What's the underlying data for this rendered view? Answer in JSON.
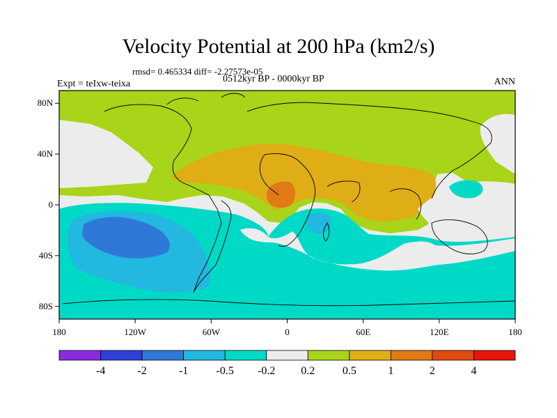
{
  "title": "Velocity Potential at 200 hPa (km2/s)",
  "stats": "rmsd= 0.465334 diff= -2.27573e-05",
  "experiment": "Expt = teIxw-teixa",
  "period": "0512kyr BP - 0000kyr BP",
  "season": "ANN",
  "map": {
    "projection": "cylindrical equidistant",
    "lon_range": [
      -180,
      180
    ],
    "lat_range": [
      -90,
      90
    ],
    "x_ticks": [
      "180",
      "120W",
      "60W",
      "0",
      "60E",
      "120E",
      "180"
    ],
    "y_ticks": [
      "80N",
      "40N",
      "0",
      "40S",
      "80S"
    ],
    "fill_colors": {
      "lt_-4": "#8a2be2",
      "-4_-2": "#2e3fd9",
      "-2_-1": "#2f78d8",
      "-1_-0.5": "#22b8e0",
      "-0.5_-0.2": "#00d9c6",
      "-0.2_0.2": "#ececec",
      "0.2_0.5": "#a8d419",
      "0.5_1": "#dfad16",
      "1_2": "#e07a14",
      "2_4": "#e04b0e",
      "gt_4": "#e8150c"
    }
  },
  "colorbar": {
    "labels": [
      "-4",
      "-2",
      "-1",
      "-0.5",
      "-0.2",
      "0.2",
      "0.5",
      "1",
      "2",
      "4"
    ],
    "colors": [
      "#8a2be2",
      "#2e3fd9",
      "#2f78d8",
      "#22b8e0",
      "#00d9c6",
      "#ececec",
      "#a8d419",
      "#dfad16",
      "#e07a14",
      "#e04b0e",
      "#e8150c"
    ]
  }
}
